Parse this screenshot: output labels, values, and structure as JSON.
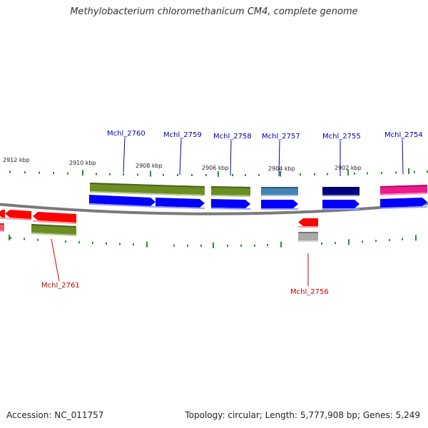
{
  "title": "Methylobacterium chloromethanicum CM4, complete genome",
  "footer": {
    "accession": "Accession: NC_011757",
    "stats": "Topology: circular; Length: 5,777,908 bp; Genes: 5,249"
  },
  "ticks": [
    "2912 kbp",
    "2910 kbp",
    "2908 kbp",
    "2906 kbp",
    "2904 kbp",
    "2902 kbp"
  ],
  "colors": {
    "forward_label": "#0000aa",
    "reverse_label": "#cc0000",
    "cds": "#0000ff",
    "gene_reverse": "#ff0000",
    "tick": "#2e8b2e",
    "backbone": "#7a7a7a",
    "feature_olive": "#6b8e23",
    "feature_steelblue": "#4682b4",
    "feature_navy": "#000080",
    "feature_pink": "#ee1a8c",
    "feature_grey": "#a9a9a9"
  },
  "genes": [
    {
      "label": "Mchl_2760",
      "strand": "forward",
      "feature_color": "feature_olive"
    },
    {
      "label": "Mchl_2759",
      "strand": "forward",
      "feature_color": "feature_olive"
    },
    {
      "label": "Mchl_2758",
      "strand": "forward",
      "feature_color": "feature_olive"
    },
    {
      "label": "Mchl_2757",
      "strand": "forward",
      "feature_color": "feature_steelblue"
    },
    {
      "label": "Mchl_2755",
      "strand": "forward",
      "feature_color": "feature_navy"
    },
    {
      "label": "Mchl_2754",
      "strand": "forward",
      "feature_color": "feature_pink"
    },
    {
      "label": "Mchl_2761",
      "strand": "reverse",
      "feature_color": "feature_olive"
    },
    {
      "label": "Mchl_2756",
      "strand": "reverse",
      "feature_color": "feature_grey"
    }
  ]
}
